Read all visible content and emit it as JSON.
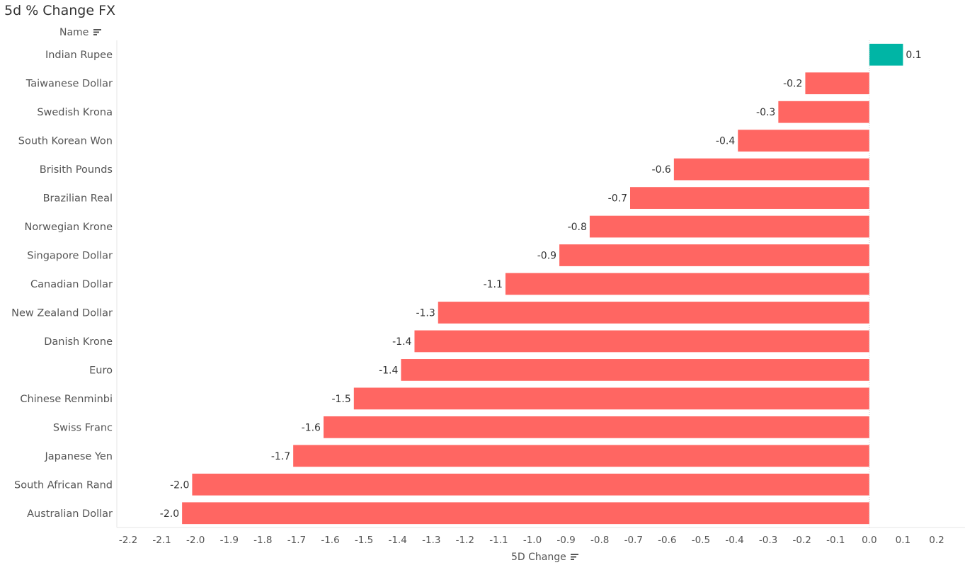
{
  "title": "5d % Change FX",
  "row_header": "Name",
  "x_axis_title": "5D Change",
  "colors": {
    "positive": "#00B5A5",
    "negative": "#FF6662",
    "axis_line": "#e6e6e6",
    "zero_line": "#cccccc",
    "label": "#555555",
    "value_label": "#333333"
  },
  "icons": {
    "row_sort": "sort-descending-icon",
    "axis_sort": "sort-descending-icon"
  },
  "chart_data": {
    "type": "bar",
    "orientation": "horizontal",
    "title": "5d % Change FX",
    "xlabel": "5D Change",
    "ylabel": "Name",
    "xlim": [
      -2.2,
      0.2
    ],
    "x_ticks": [
      "-2.2",
      "-2.1",
      "-2.0",
      "-1.9",
      "-1.8",
      "-1.7",
      "-1.6",
      "-1.5",
      "-1.4",
      "-1.3",
      "-1.2",
      "-1.1",
      "-1.0",
      "-0.9",
      "-0.8",
      "-0.7",
      "-0.6",
      "-0.5",
      "-0.4",
      "-0.3",
      "-0.2",
      "-0.1",
      "0.0",
      "0.1",
      "0.2"
    ],
    "grid": false,
    "categories": [
      "Indian Rupee",
      "Taiwanese Dollar",
      "Swedish Krona",
      "South Korean Won",
      "Brisith Pounds",
      "Brazilian Real",
      "Norwegian Krone",
      "Singapore Dollar",
      "Canadian Dollar",
      "New Zealand Dollar",
      "Danish Krone",
      "Euro",
      "Chinese Renminbi",
      "Swiss Franc",
      "Japanese Yen",
      "South African Rand",
      "Australian Dollar"
    ],
    "values": [
      0.1,
      -0.19,
      -0.27,
      -0.39,
      -0.58,
      -0.71,
      -0.83,
      -0.92,
      -1.08,
      -1.28,
      -1.35,
      -1.39,
      -1.53,
      -1.62,
      -1.71,
      -2.01,
      -2.04
    ],
    "value_labels": [
      "0.1",
      "-0.2",
      "-0.3",
      "-0.4",
      "-0.6",
      "-0.7",
      "-0.8",
      "-0.9",
      "-1.1",
      "-1.3",
      "-1.4",
      "-1.4",
      "-1.5",
      "-1.6",
      "-1.7",
      "-2.0",
      "-2.0"
    ]
  }
}
